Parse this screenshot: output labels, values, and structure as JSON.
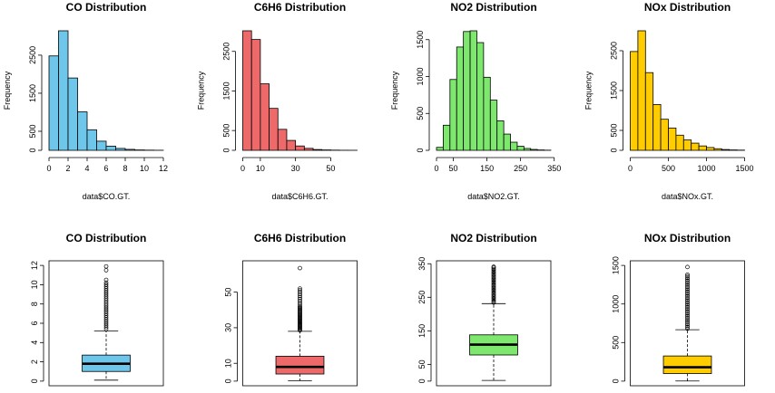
{
  "chart_data": [
    {
      "type": "histogram",
      "title": "CO Distribution",
      "xlabel": "data$CO.GT.",
      "ylabel": "Frequency",
      "color": "#6ec6ea",
      "bin_edges": [
        0,
        1,
        2,
        3,
        4,
        5,
        6,
        7,
        8,
        9,
        10,
        11,
        12
      ],
      "counts": [
        2480,
        3140,
        1900,
        1010,
        540,
        240,
        110,
        50,
        25,
        10,
        5,
        2
      ],
      "xlim": [
        0,
        12
      ],
      "ylim": [
        0,
        3140
      ],
      "xticks": [
        0,
        2,
        4,
        6,
        8,
        10,
        12
      ],
      "yticks": [
        0,
        500,
        1500,
        2500
      ]
    },
    {
      "type": "histogram",
      "title": "C6H6 Distribution",
      "xlabel": "data$C6H6.GT.",
      "ylabel": "Frequency",
      "color": "#ee6a6a",
      "bin_edges": [
        0,
        5,
        10,
        15,
        20,
        25,
        30,
        35,
        40,
        45,
        50,
        55,
        60,
        65
      ],
      "counts": [
        3020,
        2800,
        1680,
        1060,
        530,
        250,
        110,
        50,
        20,
        10,
        5,
        2,
        1
      ],
      "xlim": [
        0,
        65
      ],
      "ylim": [
        0,
        3020
      ],
      "xticks": [
        0,
        10,
        30,
        50
      ],
      "yticks": [
        0,
        500,
        1500,
        2500
      ]
    },
    {
      "type": "histogram",
      "title": "NO2 Distribution",
      "xlabel": "data$NO2.GT.",
      "ylabel": "Frequency",
      "color": "#7ee86e",
      "bin_edges": [
        0,
        20,
        40,
        60,
        80,
        100,
        120,
        140,
        160,
        180,
        200,
        220,
        240,
        260,
        280,
        300,
        320,
        340
      ],
      "counts": [
        40,
        340,
        960,
        1400,
        1610,
        1620,
        1460,
        990,
        680,
        400,
        220,
        110,
        55,
        25,
        12,
        5,
        2
      ],
      "xlim": [
        0,
        340
      ],
      "ylim": [
        0,
        1620
      ],
      "xticks": [
        0,
        50,
        150,
        250,
        350
      ],
      "yticks": [
        0,
        500,
        1000,
        1500
      ]
    },
    {
      "type": "histogram",
      "title": "NOx Distribution",
      "xlabel": "data$NOx.GT.",
      "ylabel": "Frequency",
      "color": "#ffcc00",
      "bin_edges": [
        0,
        100,
        200,
        300,
        400,
        500,
        600,
        700,
        800,
        900,
        1000,
        1100,
        1200,
        1300,
        1400,
        1500
      ],
      "counts": [
        2480,
        3000,
        1950,
        1150,
        780,
        560,
        380,
        260,
        180,
        110,
        70,
        40,
        20,
        10,
        5
      ],
      "xlim": [
        0,
        1500
      ],
      "ylim": [
        0,
        3000
      ],
      "xticks": [
        0,
        500,
        1000,
        1500
      ],
      "yticks": [
        0,
        500,
        1500,
        2500
      ]
    },
    {
      "type": "boxplot",
      "title": "CO Distribution",
      "color": "#6ec6ea",
      "stats": {
        "min": 0.1,
        "q1": 1.0,
        "median": 1.8,
        "q3": 2.7,
        "whisker_high": 5.2
      },
      "outliers": [
        5.4,
        5.6,
        5.8,
        6.0,
        6.2,
        6.4,
        6.6,
        6.8,
        7.0,
        7.2,
        7.4,
        7.6,
        7.8,
        8.0,
        8.2,
        8.4,
        8.6,
        8.8,
        9.0,
        9.2,
        9.4,
        9.6,
        9.8,
        10.0,
        10.2,
        10.5,
        11.5,
        11.9
      ],
      "ylim": [
        0,
        12
      ],
      "yticks": [
        0,
        2,
        4,
        6,
        8,
        10,
        12
      ]
    },
    {
      "type": "boxplot",
      "title": "C6H6 Distribution",
      "color": "#ee6a6a",
      "stats": {
        "min": 0.2,
        "q1": 4.0,
        "median": 8.0,
        "q3": 14.0,
        "whisker_high": 28.0
      },
      "outliers": [
        28.5,
        29,
        29.5,
        30,
        30.5,
        31,
        31.5,
        32,
        32.5,
        33,
        33.5,
        34,
        34.5,
        35,
        35.5,
        36,
        36.5,
        37,
        37.5,
        38,
        38.5,
        39,
        39.5,
        40,
        40.5,
        41,
        41.5,
        42,
        43,
        44,
        45,
        46,
        47,
        48,
        49,
        50,
        51,
        52,
        63.5
      ],
      "ylim": [
        0,
        65
      ],
      "yticks": [
        0,
        10,
        30,
        50
      ]
    },
    {
      "type": "boxplot",
      "title": "NO2 Distribution",
      "color": "#7ee86e",
      "stats": {
        "min": 2,
        "q1": 78,
        "median": 109,
        "q3": 138,
        "whisker_high": 231
      },
      "outliers": [
        234,
        238,
        242,
        246,
        250,
        254,
        258,
        262,
        266,
        270,
        274,
        278,
        282,
        286,
        290,
        294,
        298,
        302,
        306,
        310,
        314,
        318,
        322,
        326,
        330,
        334,
        338,
        341
      ],
      "ylim": [
        0,
        345
      ],
      "yticks": [
        0,
        50,
        150,
        250,
        350
      ]
    },
    {
      "type": "boxplot",
      "title": "NOx Distribution",
      "color": "#ffcc00",
      "stats": {
        "min": 2,
        "q1": 98,
        "median": 180,
        "q3": 326,
        "whisker_high": 666
      },
      "outliers": [
        680,
        700,
        720,
        740,
        760,
        780,
        800,
        820,
        840,
        860,
        880,
        900,
        920,
        940,
        960,
        980,
        1000,
        1020,
        1040,
        1060,
        1080,
        1100,
        1120,
        1140,
        1160,
        1180,
        1200,
        1220,
        1240,
        1260,
        1280,
        1300,
        1320,
        1340,
        1360,
        1380,
        1479
      ],
      "ylim": [
        0,
        1500
      ],
      "yticks": [
        0,
        500,
        1000,
        1500
      ]
    }
  ]
}
